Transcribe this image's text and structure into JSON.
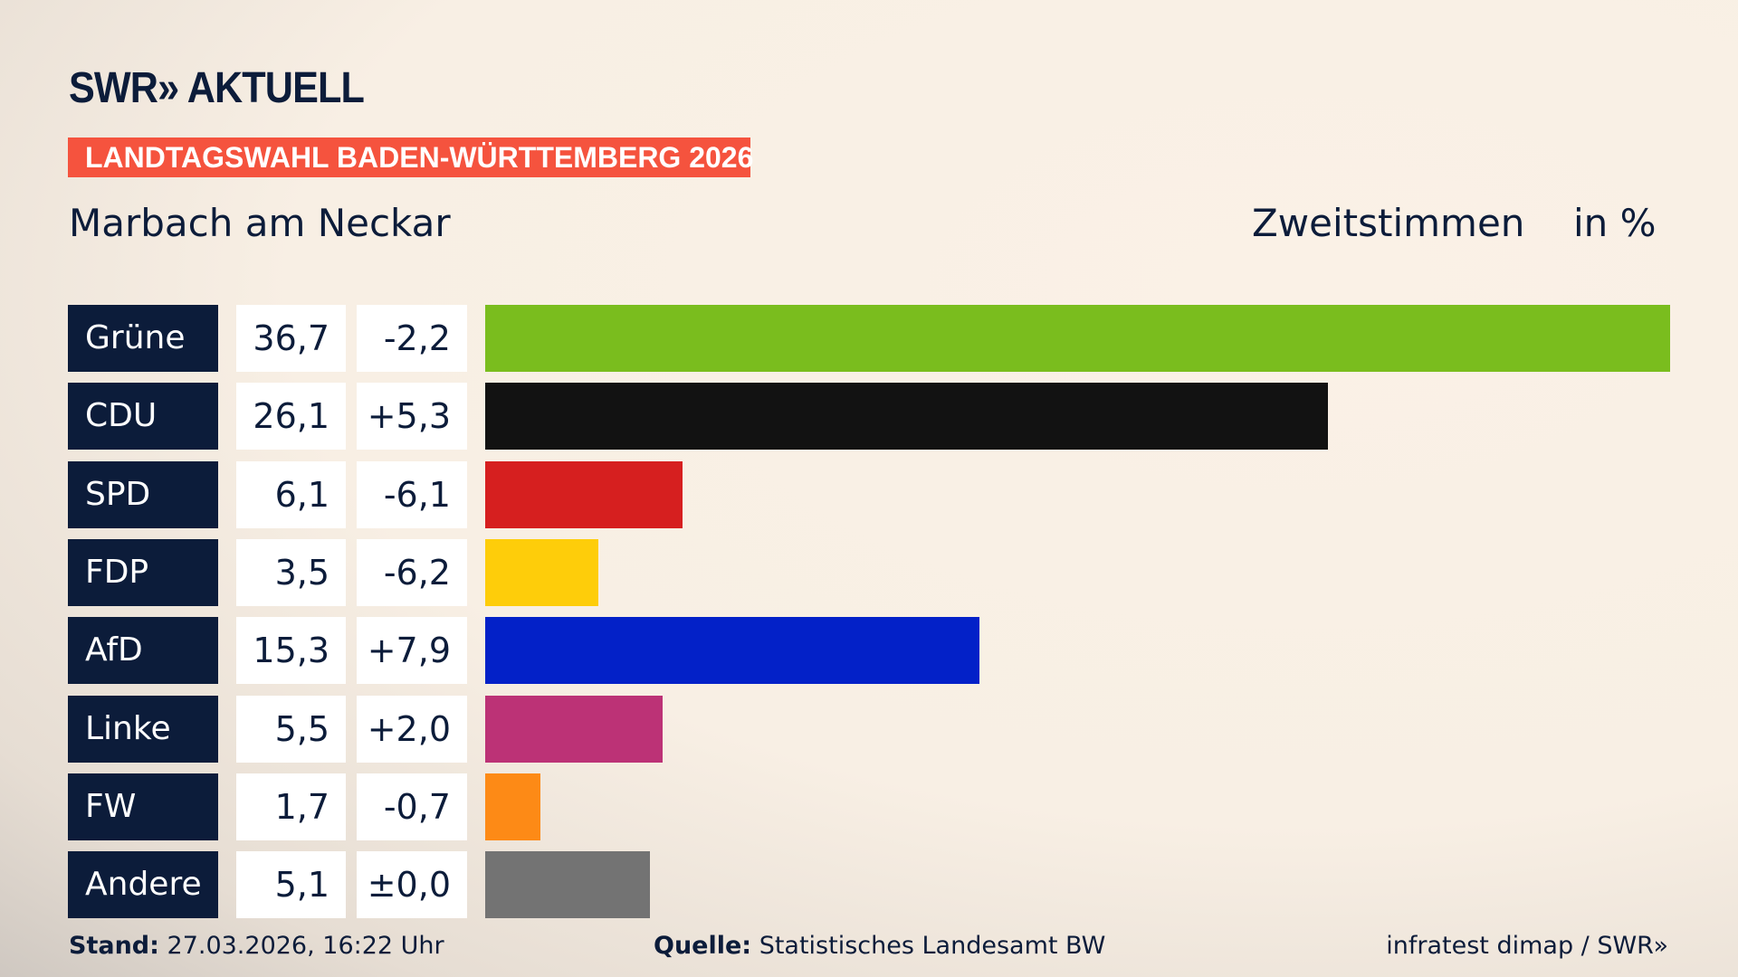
{
  "header": {
    "logo": "SWR» AKTUELL",
    "banner": "LANDTAGSWAHL BADEN-WÜRTTEMBERG 2026",
    "constituency": "Marbach am Neckar",
    "vote_type": "Zweitstimmen",
    "unit": "in %"
  },
  "chart_data": {
    "type": "bar",
    "orientation": "horizontal",
    "title": "Marbach am Neckar",
    "subtitle": "Zweitstimmen in %",
    "xlim": [
      0,
      36.7
    ],
    "categories": [
      "Grüne",
      "CDU",
      "SPD",
      "FDP",
      "AfD",
      "Linke",
      "FW",
      "Andere"
    ],
    "values": [
      36.7,
      26.1,
      6.1,
      3.5,
      15.3,
      5.5,
      1.7,
      5.1
    ],
    "value_labels": [
      "36,7",
      "26,1",
      "6,1",
      "3,5",
      "15,3",
      "5,5",
      "1,7",
      "5,1"
    ],
    "change_labels": [
      "-2,2",
      "+5,3",
      "-6,1",
      "-6,2",
      "+7,9",
      "+2,0",
      "-0,7",
      "±0,0"
    ],
    "colors": [
      "#7abd1e",
      "#121212",
      "#d61f1f",
      "#fecd0a",
      "#0321c8",
      "#bc3276",
      "#fd8a16",
      "#737373"
    ]
  },
  "footer": {
    "stand_label": "Stand:",
    "stand_value": "27.03.2026, 16:22 Uhr",
    "source_label": "Quelle:",
    "source_value": "Statistisches Landesamt BW",
    "credit": "infratest dimap / SWR»"
  }
}
